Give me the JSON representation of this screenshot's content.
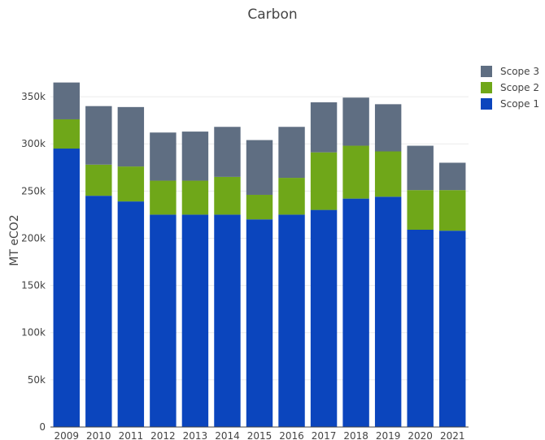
{
  "chart_data": {
    "type": "bar",
    "stacked": true,
    "title": "Carbon",
    "xlabel": "",
    "ylabel": "MT eCO2",
    "ylim": [
      0,
      375000
    ],
    "y_ticks": [
      0,
      50000,
      100000,
      150000,
      200000,
      250000,
      300000,
      350000
    ],
    "y_tick_labels": [
      "0",
      "50k",
      "100k",
      "150k",
      "200k",
      "250k",
      "300k",
      "350k"
    ],
    "categories": [
      "2009",
      "2010",
      "2011",
      "2012",
      "2013",
      "2014",
      "2015",
      "2016",
      "2017",
      "2018",
      "2019",
      "2020",
      "2021"
    ],
    "series": [
      {
        "name": "Scope 1",
        "color": "#0b45bd",
        "values": [
          295000,
          245000,
          239000,
          225000,
          225000,
          225000,
          220000,
          225000,
          230000,
          242000,
          244000,
          209000,
          208000
        ]
      },
      {
        "name": "Scope 2",
        "color": "#6fa719",
        "values": [
          31000,
          33000,
          37000,
          36000,
          36000,
          40000,
          26000,
          39000,
          61000,
          56000,
          48000,
          42000,
          43000
        ]
      },
      {
        "name": "Scope 3",
        "color": "#5f6e82",
        "values": [
          39000,
          62000,
          63000,
          51000,
          52000,
          53000,
          58000,
          54000,
          53000,
          51000,
          50000,
          47000,
          29000
        ]
      }
    ],
    "legend_position": "top-right",
    "legend_order": [
      "Scope 3",
      "Scope 2",
      "Scope 1"
    ],
    "grid": true
  }
}
